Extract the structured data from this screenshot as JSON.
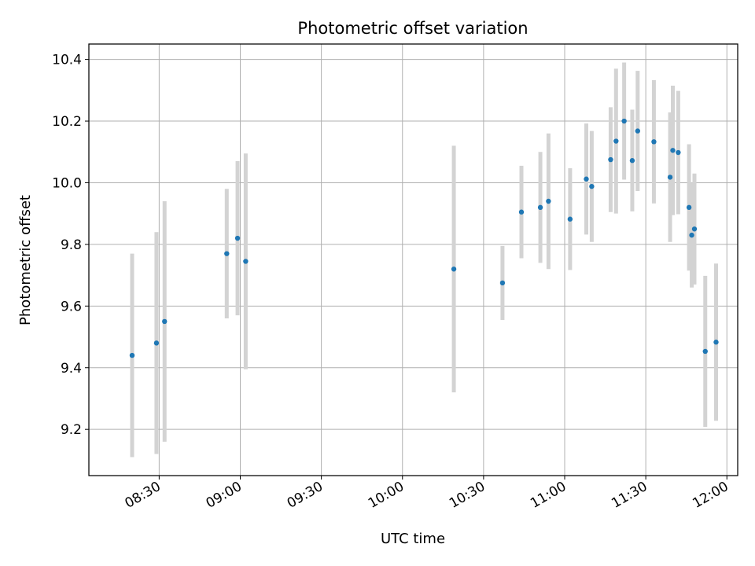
{
  "chart_data": {
    "type": "scatter",
    "title": "Photometric offset variation",
    "xlabel": "UTC time",
    "ylabel": "Photometric offset",
    "grid": true,
    "xlim": [
      "08:04",
      "12:04"
    ],
    "ylim": [
      9.05,
      10.45
    ],
    "x_ticks": [
      "08:30",
      "09:00",
      "09:30",
      "10:00",
      "10:30",
      "11:00",
      "11:30",
      "12:00"
    ],
    "y_ticks": [
      9.2,
      9.4,
      9.6,
      9.8,
      10.0,
      10.2,
      10.4
    ],
    "y_tick_labels": [
      "9.2",
      "9.4",
      "9.6",
      "9.8",
      "10.0",
      "10.2",
      "10.4"
    ],
    "marker_color": "#1f77b4",
    "errorbar_color": "#d3d3d3",
    "points": [
      {
        "x": "08:20",
        "y": 9.44,
        "err": 0.33
      },
      {
        "x": "08:29",
        "y": 9.48,
        "err": 0.36
      },
      {
        "x": "08:32",
        "y": 9.55,
        "err": 0.39
      },
      {
        "x": "08:55",
        "y": 9.77,
        "err": 0.21
      },
      {
        "x": "08:59",
        "y": 9.82,
        "err": 0.25
      },
      {
        "x": "09:02",
        "y": 9.745,
        "err": 0.35
      },
      {
        "x": "10:19",
        "y": 9.72,
        "err": 0.4
      },
      {
        "x": "10:37",
        "y": 9.675,
        "err": 0.12
      },
      {
        "x": "10:44",
        "y": 9.905,
        "err": 0.15
      },
      {
        "x": "10:51",
        "y": 9.92,
        "err": 0.18
      },
      {
        "x": "10:54",
        "y": 9.94,
        "err": 0.22
      },
      {
        "x": "11:02",
        "y": 9.882,
        "err": 0.165
      },
      {
        "x": "11:08",
        "y": 10.012,
        "err": 0.18
      },
      {
        "x": "11:10",
        "y": 9.988,
        "err": 0.18
      },
      {
        "x": "11:17",
        "y": 10.075,
        "err": 0.17
      },
      {
        "x": "11:19",
        "y": 10.135,
        "err": 0.235
      },
      {
        "x": "11:22",
        "y": 10.2,
        "err": 0.19
      },
      {
        "x": "11:25",
        "y": 10.072,
        "err": 0.165
      },
      {
        "x": "11:27",
        "y": 10.168,
        "err": 0.195
      },
      {
        "x": "11:33",
        "y": 10.133,
        "err": 0.2
      },
      {
        "x": "11:39",
        "y": 10.018,
        "err": 0.21
      },
      {
        "x": "11:40",
        "y": 10.105,
        "err": 0.21
      },
      {
        "x": "11:42",
        "y": 10.098,
        "err": 0.2
      },
      {
        "x": "11:46",
        "y": 9.92,
        "err": 0.205
      },
      {
        "x": "11:47",
        "y": 9.83,
        "err": 0.17
      },
      {
        "x": "11:48",
        "y": 9.85,
        "err": 0.18
      },
      {
        "x": "11:52",
        "y": 9.453,
        "err": 0.245
      },
      {
        "x": "11:56",
        "y": 9.483,
        "err": 0.255
      }
    ]
  }
}
